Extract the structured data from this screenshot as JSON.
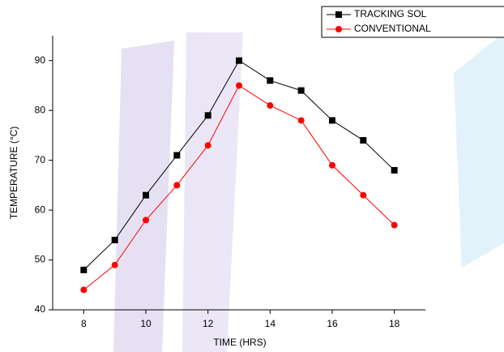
{
  "chart_data": {
    "type": "line",
    "x_label": "TIME (HRS)",
    "y_label": "TEMPERATURE (°C)",
    "x": [
      8,
      9,
      10,
      11,
      12,
      13,
      14,
      15,
      16,
      17,
      18
    ],
    "series": [
      {
        "name": "TRACKING SOL",
        "color": "#000000",
        "marker": "square",
        "values": [
          48,
          54,
          63,
          71,
          79,
          90,
          86,
          84,
          78,
          74,
          68
        ]
      },
      {
        "name": "CONVENTIONAL",
        "color": "#ff0000",
        "marker": "circle",
        "values": [
          44,
          49,
          58,
          65,
          73,
          85,
          81,
          78,
          69,
          63,
          57
        ]
      }
    ],
    "xlim": [
      7,
      19
    ],
    "xticks": [
      8,
      10,
      12,
      14,
      16,
      18
    ],
    "ylim": [
      40,
      95
    ],
    "yticks": [
      40,
      50,
      60,
      70,
      80,
      90
    ],
    "grid": false,
    "legend": "top-right"
  }
}
